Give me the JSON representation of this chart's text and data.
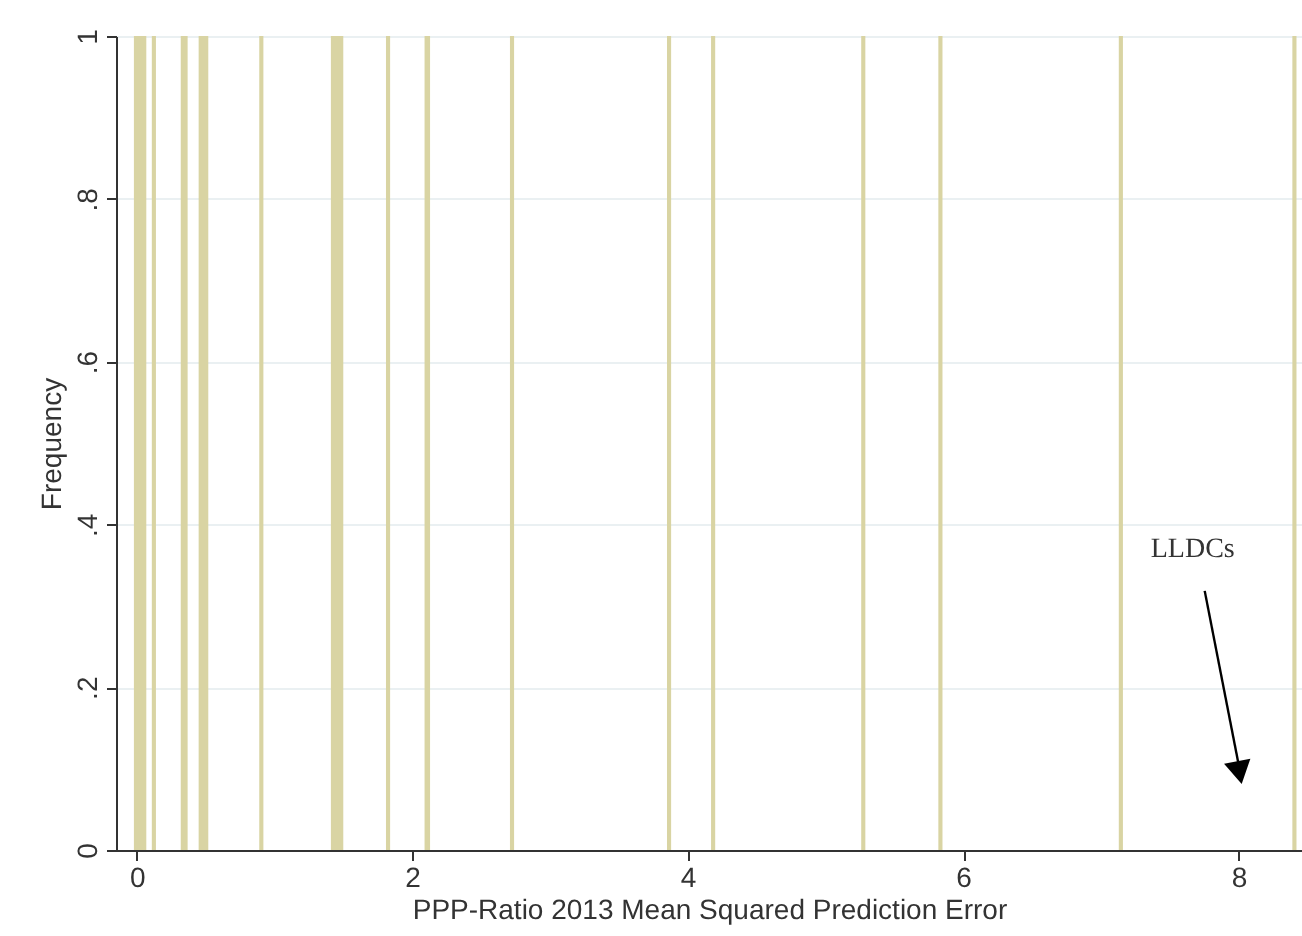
{
  "chart_data": {
    "type": "histogram",
    "xlabel": "PPP-Ratio 2013 Mean Squared Prediction Error",
    "ylabel": "Frequency",
    "bins": [
      -0.02,
      0.07,
      0.11,
      0.14,
      0.32,
      0.37,
      0.45,
      0.52,
      0.89,
      0.92,
      1.41,
      1.5,
      1.81,
      1.84,
      2.09,
      2.13,
      2.71,
      2.74,
      3.85,
      3.88,
      4.17,
      4.2,
      5.26,
      5.29,
      5.82,
      5.85,
      7.13,
      7.16,
      8.39,
      8.42
    ],
    "values": [
      1,
      0,
      1,
      0,
      1,
      0,
      1,
      0,
      1,
      0,
      1,
      0,
      1,
      0,
      1,
      0,
      1,
      0,
      1,
      0,
      1,
      0,
      1,
      0,
      1,
      0,
      1,
      0,
      1
    ],
    "color": "#d9d4a3",
    "xlim": [
      -0.15,
      8.46
    ],
    "xticks": [
      0,
      2,
      4,
      6,
      8
    ],
    "ylim": [
      0,
      1
    ],
    "yticks": [
      0,
      {
        "value": 0.2,
        "label": ".2"
      },
      {
        "value": 0.4,
        "label": ".4"
      },
      {
        "value": 0.6,
        "label": ".6"
      },
      {
        "value": 0.8,
        "label": ".8"
      },
      1
    ],
    "grid": "y",
    "annotations": [
      "LLDCs"
    ]
  }
}
